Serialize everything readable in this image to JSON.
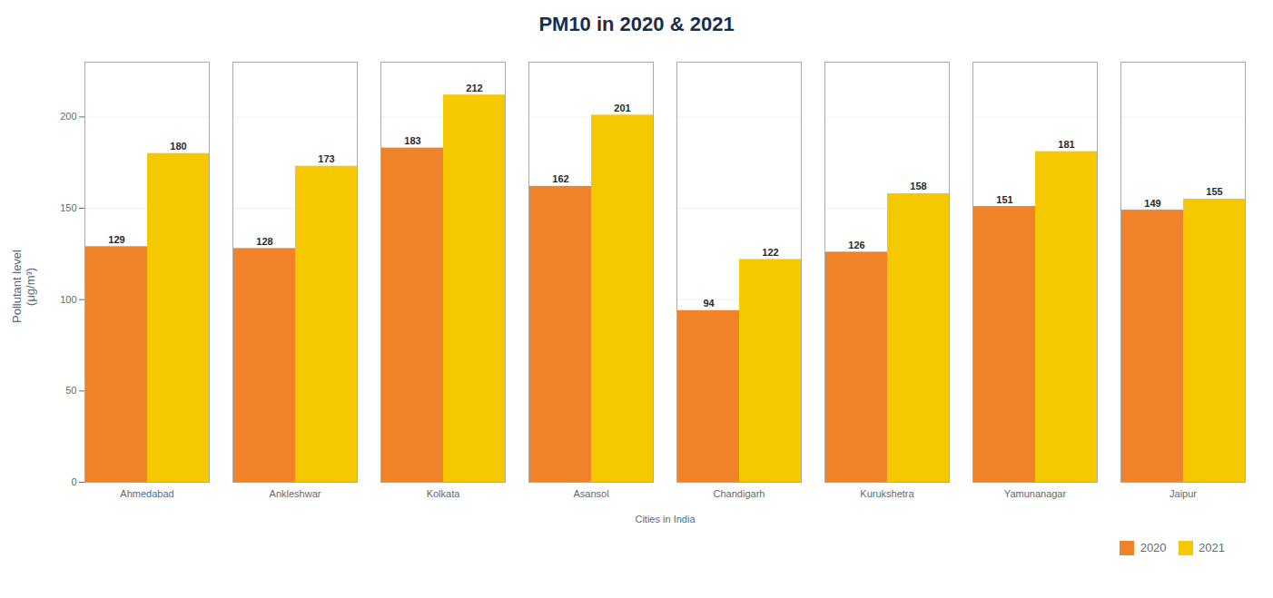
{
  "chart_data": {
    "type": "bar",
    "title": "PM10 in 2020 & 2021",
    "xlabel": "Cities in India",
    "ylabel": "Pollutant level\n(μg/m³)",
    "categories": [
      "Ahmedabad",
      "Ankleshwar",
      "Kolkata",
      "Asansol",
      "Chandigarh",
      "Kurukshetra",
      "Yamunanagar",
      "Jaipur"
    ],
    "series": [
      {
        "name": "2020",
        "color": "#F0832A",
        "values": [
          129,
          128,
          183,
          162,
          94,
          126,
          151,
          149
        ]
      },
      {
        "name": "2021",
        "color": "#F5C800",
        "values": [
          180,
          173,
          212,
          201,
          122,
          158,
          181,
          155
        ]
      }
    ],
    "ylim": [
      0,
      230
    ],
    "yticks": [
      0,
      50,
      100,
      150,
      200
    ],
    "grid": true,
    "data_labels": true,
    "legend": "lower right"
  }
}
